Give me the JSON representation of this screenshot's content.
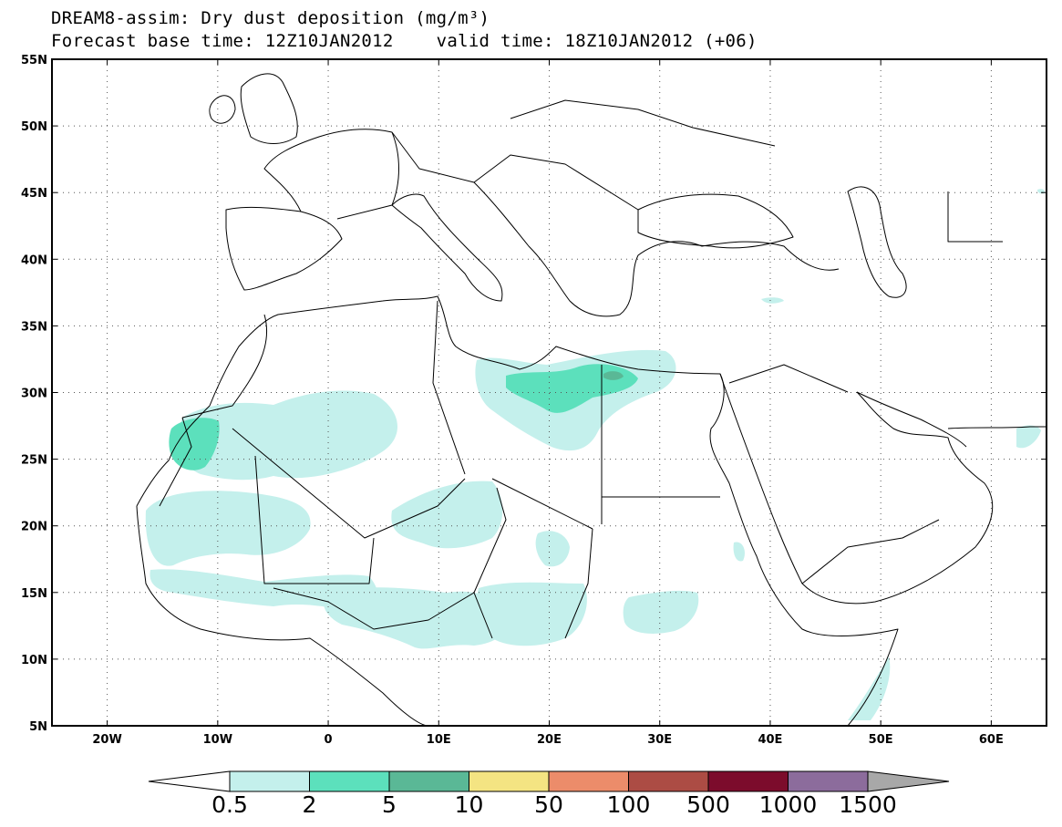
{
  "title": {
    "line1": "DREAM8-assim: Dry dust deposition (mg/m³)",
    "line2": "Forecast base time: 12Z10JAN2012    valid time: 18Z10JAN2012 (+06)"
  },
  "map": {
    "lon_range": [
      -25,
      65
    ],
    "lat_range": [
      5,
      55
    ],
    "lat_ticks": [
      "5N",
      "10N",
      "15N",
      "20N",
      "25N",
      "30N",
      "35N",
      "40N",
      "45N",
      "50N",
      "55N"
    ],
    "lon_ticks": [
      "20W",
      "10W",
      "0",
      "10E",
      "20E",
      "30E",
      "40E",
      "50E",
      "60E"
    ],
    "gridlines": "dotted"
  },
  "legend": {
    "labels": [
      "0.5",
      "2",
      "5",
      "10",
      "50",
      "100",
      "500",
      "1000",
      "1500"
    ],
    "colors": {
      "under": "#ffffff",
      "bins": [
        "#c4f0ec",
        "#5ce0bc",
        "#5ab896",
        "#f4e482",
        "#ec8c6a",
        "#ac4c44",
        "#7c0c2c",
        "#8c6c9c"
      ],
      "over": "#a8a8a8"
    }
  },
  "colors": {
    "level1": "#c4f0ec",
    "level2": "#5ce0bc",
    "level3": "#5ab896",
    "coast": "#000000"
  }
}
